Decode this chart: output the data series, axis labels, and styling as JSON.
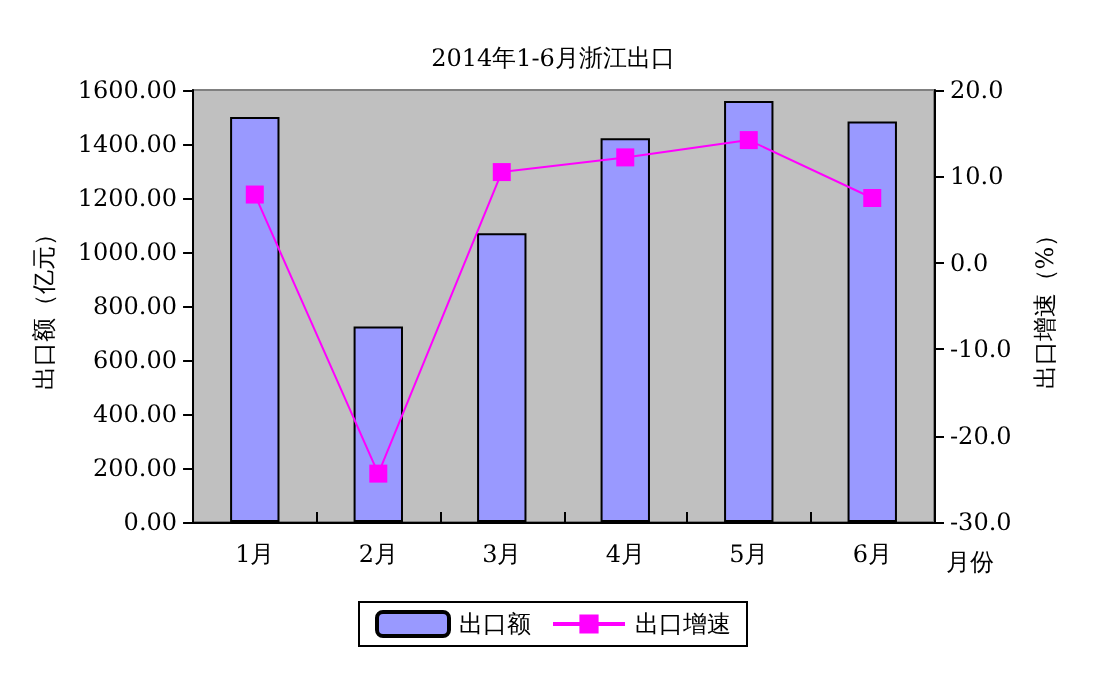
{
  "chart_data": {
    "type": "bar",
    "title": "2014年1-6月浙江出口",
    "xlabel": "月份",
    "ylabel": "出口额（亿元）",
    "y2label": "出口增速（%）",
    "categories": [
      "1月",
      "2月",
      "3月",
      "4月",
      "5月",
      "6月"
    ],
    "series": [
      {
        "name": "出口额",
        "color": "#9999ff",
        "values": [
          1500,
          724,
          1069,
          1421,
          1559,
          1483
        ]
      },
      {
        "name": "出口增速",
        "type": "line",
        "axis": "y2",
        "color": "#ff00ff",
        "marker": "square",
        "values": [
          7.9,
          -24.4,
          10.5,
          12.2,
          14.2,
          7.5
        ]
      }
    ],
    "ylim": [
      0,
      1600
    ],
    "yticks": [
      {
        "value": 0,
        "label": "0.00"
      },
      {
        "value": 200,
        "label": "200.00"
      },
      {
        "value": 400,
        "label": "400.00"
      },
      {
        "value": 600,
        "label": "600.00"
      },
      {
        "value": 800,
        "label": "800.00"
      },
      {
        "value": 1000,
        "label": "1000.00"
      },
      {
        "value": 1200,
        "label": "1200.00"
      },
      {
        "value": 1400,
        "label": "1400.00"
      },
      {
        "value": 1600,
        "label": "1600.00"
      }
    ],
    "y2lim": [
      -30,
      20
    ],
    "y2ticks": [
      {
        "value": -30,
        "label": "-30.0"
      },
      {
        "value": -20,
        "label": "-20.0"
      },
      {
        "value": -10,
        "label": "-10.0"
      },
      {
        "value": 0,
        "label": "0.0"
      },
      {
        "value": 10,
        "label": "10.0"
      },
      {
        "value": 20,
        "label": "20.0"
      }
    ],
    "grid": false,
    "legend": "bottom"
  }
}
